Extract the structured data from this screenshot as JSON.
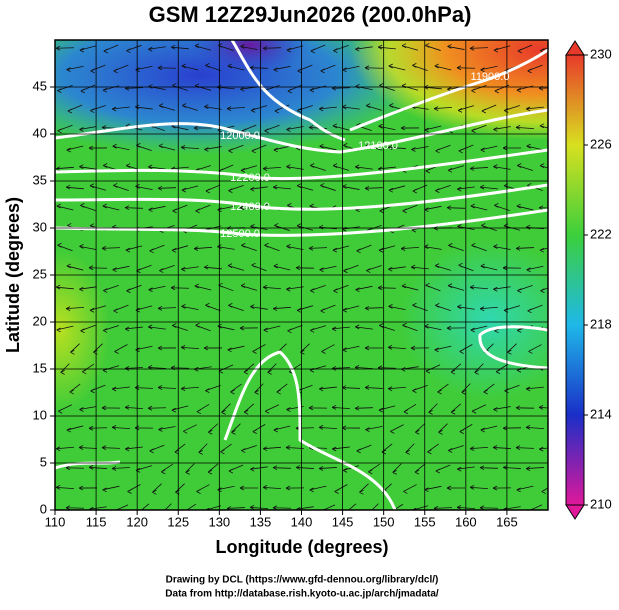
{
  "chart_data": {
    "type": "contour-map",
    "title": "GSM 12Z29Jun2026 (200.0hPa)",
    "x_label": "Longitude (degrees)",
    "y_label": "Latitude  (degrees)",
    "xlim": [
      110,
      170
    ],
    "xticks": [
      110,
      115,
      120,
      125,
      130,
      135,
      140,
      145,
      150,
      155,
      160,
      165
    ],
    "ylim": [
      0,
      50
    ],
    "yticks": [
      0,
      5,
      10,
      15,
      20,
      25,
      30,
      35,
      40,
      45
    ],
    "grid": true,
    "contour_labels": [
      "11900.0",
      "12000.0",
      "12100.0",
      "12200.0",
      "12400.0",
      "12500.0"
    ],
    "colorbar": {
      "lim": [
        210,
        230
      ],
      "ticks": [
        210,
        214,
        218,
        222,
        226,
        230
      ],
      "colors": [
        "#e0189a",
        "#1a2fc8",
        "#1fb8e8",
        "#3ccf3c",
        "#d8e020",
        "#e83a2a"
      ]
    },
    "credits": [
      "Drawing by DCL (https://www.gfd-dennou.org/library/dcl/)",
      "Data from http://database.rish.kyoto-u.ac.jp/arch/jmadata/"
    ]
  }
}
